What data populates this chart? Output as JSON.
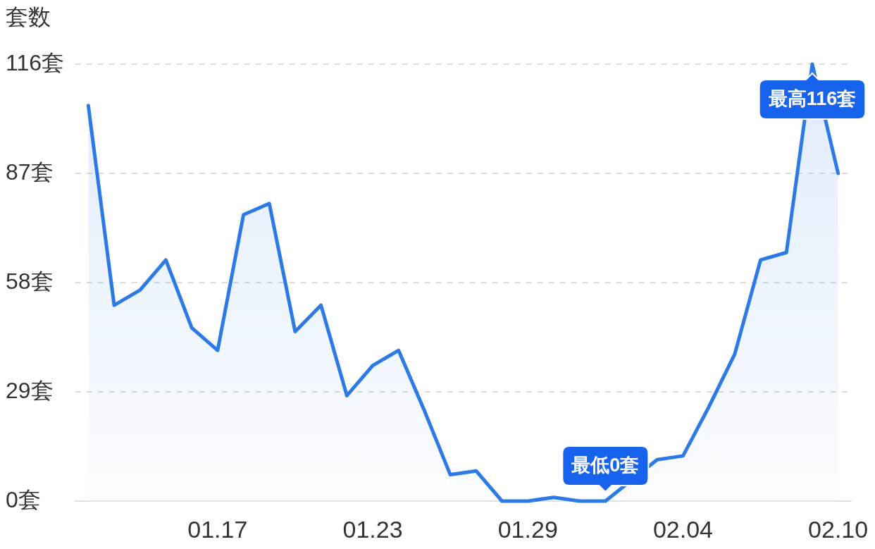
{
  "chart_data": {
    "type": "area",
    "ylabel": "套数",
    "categories": [
      null,
      null,
      null,
      null,
      null,
      "01.17",
      null,
      null,
      null,
      null,
      null,
      "01.23",
      null,
      null,
      null,
      null,
      null,
      "01.29",
      null,
      null,
      null,
      null,
      null,
      "02.04",
      null,
      null,
      null,
      null,
      null,
      "02.10"
    ],
    "values": [
      105,
      52,
      56,
      64,
      46,
      40,
      76,
      79,
      45,
      52,
      28,
      36,
      40,
      24,
      7,
      8,
      0,
      0,
      1,
      0,
      0,
      null,
      11,
      12,
      25,
      39,
      64,
      66,
      116,
      87
    ],
    "color": "#2b7ae6",
    "ylim": [
      0,
      116
    ],
    "yticks": [
      {
        "value": 0,
        "label": "0套"
      },
      {
        "value": 29,
        "label": "29套"
      },
      {
        "value": 58,
        "label": "58套"
      },
      {
        "value": 87,
        "label": "87套"
      },
      {
        "value": 116,
        "label": "116套"
      }
    ],
    "grid": "y",
    "annotations": [
      {
        "text": "最低0套",
        "y": 0
      },
      {
        "text": "最高116套",
        "y": 116
      }
    ]
  }
}
